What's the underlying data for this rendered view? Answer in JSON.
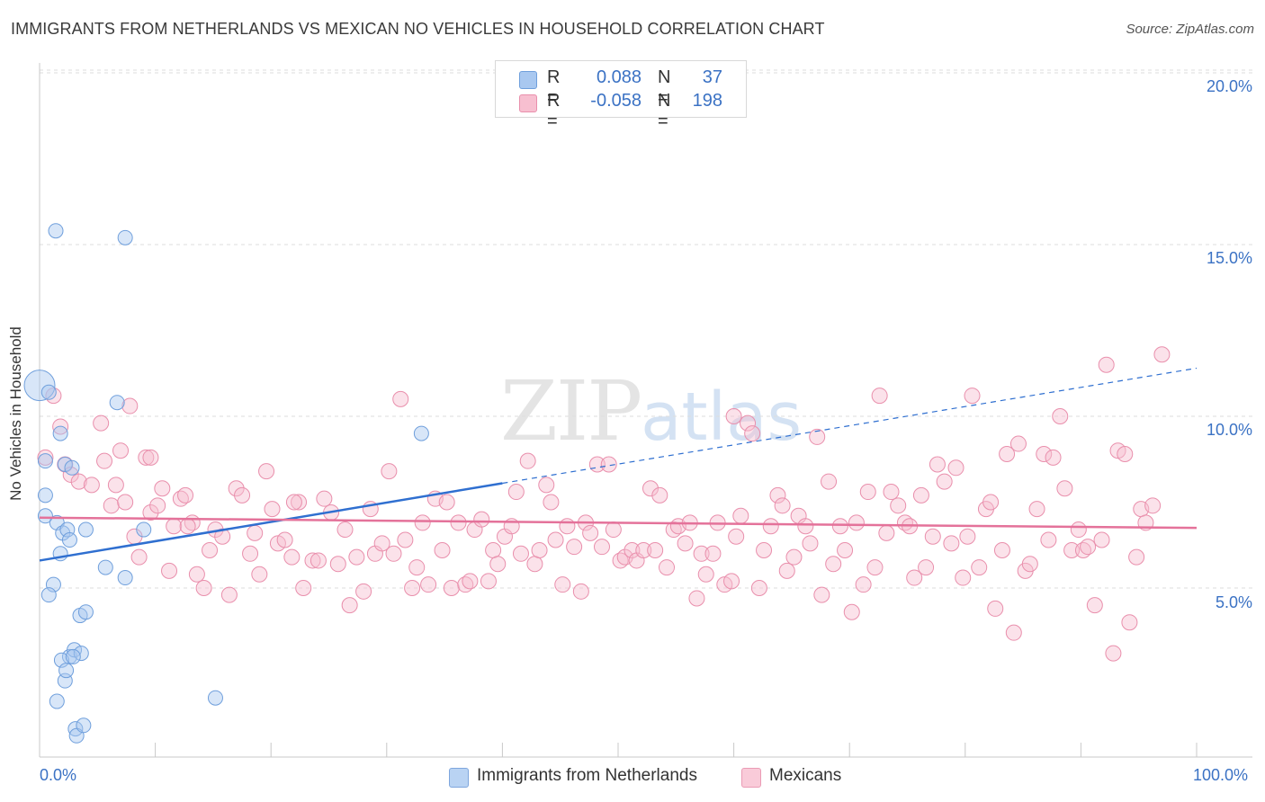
{
  "header": {
    "title": "IMMIGRANTS FROM NETHERLANDS VS MEXICAN NO VEHICLES IN HOUSEHOLD CORRELATION CHART",
    "source": "Source: ZipAtlas.com"
  },
  "watermark": {
    "zip": "ZIP",
    "atlas": "atlas"
  },
  "legend": {
    "rows": [
      {
        "r_label": "R =",
        "r_value": "0.088",
        "n_label": "N =",
        "n_value": "37",
        "color": "#a9c8f0",
        "border": "#6f9fdc"
      },
      {
        "r_label": "R =",
        "r_value": "-0.058",
        "n_label": "N =",
        "n_value": "198",
        "color": "#f7bfd0",
        "border": "#e98fac"
      }
    ]
  },
  "bottom_legend": {
    "items": [
      {
        "label": "Immigrants from Netherlands",
        "color": "#b9d3f3",
        "border": "#7ea6dd"
      },
      {
        "label": "Mexicans",
        "color": "#f9cbd9",
        "border": "#ea9bb5"
      }
    ]
  },
  "chart_data": {
    "type": "scatter",
    "title": "IMMIGRANTS FROM NETHERLANDS VS MEXICAN NO VEHICLES IN HOUSEHOLD CORRELATION CHART",
    "xlabel": "",
    "ylabel": "No Vehicles in Household",
    "xlim": [
      0,
      100
    ],
    "ylim": [
      0,
      20.5
    ],
    "x_tick_labels": [
      "0.0%",
      "100.0%"
    ],
    "y_ticks": [
      5,
      10,
      15,
      20
    ],
    "y_tick_labels": [
      "5.0%",
      "10.0%",
      "15.0%",
      "20.0%"
    ],
    "grid": true,
    "legend_position": "top-center",
    "colors": {
      "netherlands": "#6f9fdc",
      "mexicans": "#e98fac",
      "netherlands_line": "#2f6fd0",
      "mexicans_line": "#e4729a"
    },
    "series": [
      {
        "name": "Immigrants from Netherlands",
        "r": 0.088,
        "n": 37,
        "trend": {
          "x": [
            0,
            40
          ],
          "y": [
            5.8,
            8.05
          ],
          "dashed_extension_to": [
            100,
            11.4
          ]
        },
        "points": [
          [
            0,
            10.9
          ],
          [
            0.5,
            8.7
          ],
          [
            0.5,
            7.7
          ],
          [
            0.5,
            7.1
          ],
          [
            0.8,
            10.7
          ],
          [
            1.2,
            5.1
          ],
          [
            0.8,
            4.8
          ],
          [
            1.5,
            6.9
          ],
          [
            1.4,
            15.4
          ],
          [
            1.8,
            6.0
          ],
          [
            1.8,
            9.5
          ],
          [
            2.0,
            6.6
          ],
          [
            2.2,
            8.6
          ],
          [
            2.2,
            2.3
          ],
          [
            2.4,
            6.7
          ],
          [
            2.6,
            6.4
          ],
          [
            2.6,
            3.0
          ],
          [
            2.8,
            8.5
          ],
          [
            3.0,
            3.2
          ],
          [
            3.1,
            0.9
          ],
          [
            3.2,
            0.7
          ],
          [
            3.5,
            4.2
          ],
          [
            3.6,
            3.1
          ],
          [
            3.8,
            1.0
          ],
          [
            4.0,
            4.3
          ],
          [
            4.0,
            6.7
          ],
          [
            5.7,
            5.6
          ],
          [
            6.7,
            10.4
          ],
          [
            7.4,
            15.2
          ],
          [
            7.4,
            5.3
          ],
          [
            9.0,
            6.7
          ],
          [
            15.2,
            1.8
          ],
          [
            33.0,
            9.5
          ],
          [
            1.9,
            2.9
          ],
          [
            2.3,
            2.6
          ],
          [
            1.5,
            1.7
          ],
          [
            2.9,
            3.0
          ]
        ]
      },
      {
        "name": "Mexicans",
        "r": -0.058,
        "n": 198,
        "trend": {
          "x": [
            0,
            100
          ],
          "y": [
            7.05,
            6.75
          ]
        },
        "points": [
          [
            0.5,
            8.8
          ],
          [
            1.2,
            10.6
          ],
          [
            1.8,
            9.7
          ],
          [
            2.2,
            8.6
          ],
          [
            2.7,
            8.3
          ],
          [
            3.4,
            8.1
          ],
          [
            4.5,
            8.0
          ],
          [
            5.3,
            9.8
          ],
          [
            5.6,
            8.7
          ],
          [
            6.2,
            7.4
          ],
          [
            6.6,
            8.0
          ],
          [
            7.0,
            9.0
          ],
          [
            7.4,
            7.5
          ],
          [
            7.8,
            10.3
          ],
          [
            8.2,
            6.5
          ],
          [
            8.6,
            5.9
          ],
          [
            9.2,
            8.8
          ],
          [
            9.6,
            7.2
          ],
          [
            10.2,
            7.4
          ],
          [
            10.6,
            7.9
          ],
          [
            11.2,
            5.5
          ],
          [
            11.6,
            6.8
          ],
          [
            12.2,
            7.6
          ],
          [
            12.6,
            7.7
          ],
          [
            13.2,
            6.9
          ],
          [
            13.6,
            5.4
          ],
          [
            14.2,
            5.0
          ],
          [
            14.7,
            6.1
          ],
          [
            15.2,
            6.7
          ],
          [
            15.8,
            6.5
          ],
          [
            16.4,
            4.8
          ],
          [
            17.0,
            7.9
          ],
          [
            17.5,
            7.7
          ],
          [
            18.2,
            6.0
          ],
          [
            18.6,
            6.6
          ],
          [
            19.0,
            5.4
          ],
          [
            19.6,
            8.4
          ],
          [
            20.1,
            7.3
          ],
          [
            20.6,
            6.3
          ],
          [
            21.2,
            6.4
          ],
          [
            21.8,
            5.9
          ],
          [
            22.4,
            7.5
          ],
          [
            22.8,
            5.0
          ],
          [
            23.6,
            5.8
          ],
          [
            24.1,
            5.8
          ],
          [
            24.6,
            7.6
          ],
          [
            25.2,
            7.2
          ],
          [
            25.8,
            5.7
          ],
          [
            26.4,
            6.7
          ],
          [
            26.8,
            4.5
          ],
          [
            27.4,
            5.9
          ],
          [
            28.0,
            4.9
          ],
          [
            28.6,
            7.3
          ],
          [
            29.0,
            6.0
          ],
          [
            29.6,
            6.3
          ],
          [
            30.2,
            8.4
          ],
          [
            30.6,
            6.0
          ],
          [
            31.2,
            10.5
          ],
          [
            31.6,
            6.4
          ],
          [
            32.2,
            5.0
          ],
          [
            32.6,
            5.6
          ],
          [
            33.1,
            6.9
          ],
          [
            33.6,
            5.1
          ],
          [
            34.2,
            7.6
          ],
          [
            34.8,
            6.1
          ],
          [
            35.2,
            7.5
          ],
          [
            35.6,
            5.0
          ],
          [
            36.2,
            6.9
          ],
          [
            36.8,
            5.1
          ],
          [
            37.2,
            5.2
          ],
          [
            37.6,
            6.7
          ],
          [
            38.2,
            7.0
          ],
          [
            38.8,
            5.2
          ],
          [
            39.2,
            6.1
          ],
          [
            39.6,
            5.7
          ],
          [
            40.2,
            6.5
          ],
          [
            40.8,
            6.8
          ],
          [
            41.2,
            7.8
          ],
          [
            41.6,
            6.0
          ],
          [
            42.2,
            8.7
          ],
          [
            42.8,
            5.7
          ],
          [
            43.2,
            6.1
          ],
          [
            43.8,
            8.0
          ],
          [
            44.2,
            7.5
          ],
          [
            44.6,
            6.4
          ],
          [
            45.2,
            5.1
          ],
          [
            45.6,
            6.8
          ],
          [
            46.2,
            6.2
          ],
          [
            46.8,
            4.9
          ],
          [
            47.2,
            6.9
          ],
          [
            47.6,
            6.6
          ],
          [
            48.2,
            8.6
          ],
          [
            48.6,
            6.2
          ],
          [
            49.2,
            8.6
          ],
          [
            49.6,
            6.7
          ],
          [
            50.2,
            5.8
          ],
          [
            50.6,
            5.9
          ],
          [
            51.2,
            6.1
          ],
          [
            51.6,
            5.8
          ],
          [
            52.2,
            6.1
          ],
          [
            52.8,
            7.9
          ],
          [
            53.2,
            6.1
          ],
          [
            53.6,
            7.7
          ],
          [
            54.2,
            5.6
          ],
          [
            54.8,
            6.7
          ],
          [
            55.2,
            6.8
          ],
          [
            55.8,
            6.3
          ],
          [
            56.2,
            6.9
          ],
          [
            56.8,
            4.7
          ],
          [
            57.2,
            6.0
          ],
          [
            57.6,
            5.4
          ],
          [
            58.2,
            6.0
          ],
          [
            58.6,
            6.9
          ],
          [
            59.2,
            5.1
          ],
          [
            59.8,
            5.2
          ],
          [
            60.2,
            6.5
          ],
          [
            60.6,
            7.1
          ],
          [
            61.2,
            9.8
          ],
          [
            61.6,
            9.5
          ],
          [
            62.2,
            5.0
          ],
          [
            62.6,
            6.1
          ],
          [
            63.2,
            6.8
          ],
          [
            63.8,
            7.7
          ],
          [
            64.2,
            7.4
          ],
          [
            64.6,
            5.5
          ],
          [
            65.2,
            5.9
          ],
          [
            65.6,
            7.1
          ],
          [
            66.2,
            6.8
          ],
          [
            66.6,
            6.3
          ],
          [
            67.2,
            9.4
          ],
          [
            67.6,
            4.8
          ],
          [
            68.2,
            8.1
          ],
          [
            68.6,
            5.7
          ],
          [
            69.2,
            6.8
          ],
          [
            69.6,
            6.1
          ],
          [
            70.2,
            4.3
          ],
          [
            70.6,
            6.9
          ],
          [
            71.2,
            5.1
          ],
          [
            71.6,
            7.8
          ],
          [
            72.2,
            5.6
          ],
          [
            72.6,
            10.6
          ],
          [
            73.2,
            6.6
          ],
          [
            73.6,
            7.8
          ],
          [
            74.2,
            7.4
          ],
          [
            74.8,
            6.9
          ],
          [
            75.2,
            6.8
          ],
          [
            75.6,
            5.3
          ],
          [
            76.2,
            7.7
          ],
          [
            76.6,
            5.6
          ],
          [
            77.2,
            6.5
          ],
          [
            77.6,
            8.6
          ],
          [
            78.2,
            8.1
          ],
          [
            78.8,
            6.3
          ],
          [
            79.2,
            8.5
          ],
          [
            79.8,
            5.3
          ],
          [
            80.2,
            6.5
          ],
          [
            80.6,
            10.6
          ],
          [
            81.2,
            5.6
          ],
          [
            81.8,
            7.3
          ],
          [
            82.2,
            7.5
          ],
          [
            82.6,
            4.4
          ],
          [
            83.2,
            6.1
          ],
          [
            83.6,
            8.9
          ],
          [
            84.2,
            3.7
          ],
          [
            84.6,
            9.2
          ],
          [
            85.2,
            5.5
          ],
          [
            85.6,
            5.7
          ],
          [
            86.2,
            7.3
          ],
          [
            86.8,
            8.9
          ],
          [
            87.2,
            6.4
          ],
          [
            87.6,
            8.8
          ],
          [
            88.2,
            10.0
          ],
          [
            88.6,
            7.9
          ],
          [
            89.2,
            6.1
          ],
          [
            89.8,
            6.7
          ],
          [
            90.2,
            6.1
          ],
          [
            90.6,
            6.2
          ],
          [
            91.2,
            4.5
          ],
          [
            91.8,
            6.4
          ],
          [
            92.2,
            11.5
          ],
          [
            92.8,
            3.1
          ],
          [
            93.2,
            9.0
          ],
          [
            93.8,
            8.9
          ],
          [
            94.2,
            4.0
          ],
          [
            94.8,
            5.9
          ],
          [
            95.2,
            7.3
          ],
          [
            95.6,
            6.9
          ],
          [
            96.2,
            7.4
          ],
          [
            97.0,
            11.8
          ],
          [
            9.6,
            8.8
          ],
          [
            12.8,
            6.8
          ],
          [
            22.0,
            7.5
          ],
          [
            60.0,
            10.0
          ]
        ]
      }
    ]
  }
}
